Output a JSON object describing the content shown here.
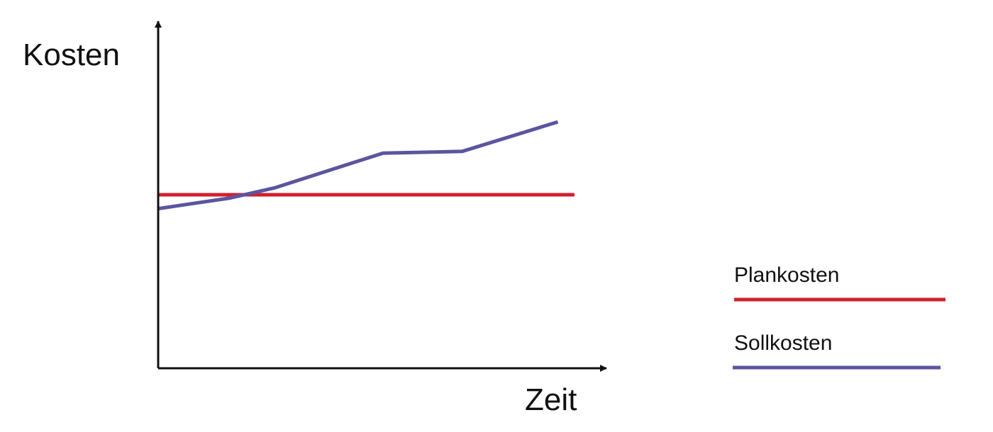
{
  "chart_data": {
    "type": "line",
    "ylabel": "Kosten",
    "xlabel": "Zeit",
    "xlim": [
      0,
      100
    ],
    "ylim": [
      0,
      100
    ],
    "grid": false,
    "legend_position": "right",
    "series": [
      {
        "name": "Plankosten",
        "color": "#d0202e",
        "x": [
          0,
          100
        ],
        "y": [
          50,
          50
        ]
      },
      {
        "name": "Sollkosten",
        "color": "#5b55a0",
        "x": [
          0,
          17,
          28,
          54,
          73,
          96
        ],
        "y": [
          46,
          49,
          52,
          62,
          62.5,
          71
        ]
      }
    ]
  }
}
